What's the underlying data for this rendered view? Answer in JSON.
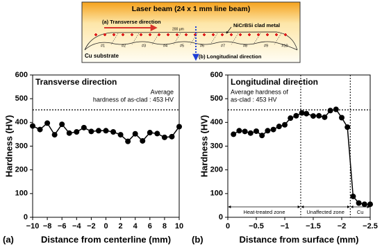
{
  "schematic": {
    "title": "Laser beam (24 x 1 mm line beam)",
    "transverse": "(a) Transverse direction",
    "scale": "200 μm",
    "clad": "NiCrBSi clad metal",
    "tracks": [
      "#1",
      "#2",
      "#3",
      "#4",
      "#5",
      "#6",
      "#7",
      "#8",
      "#9",
      "#10"
    ],
    "substrate": "Cu substrate",
    "longitudinal": "(b) Longitudinal direction"
  },
  "chart_data": [
    {
      "type": "line",
      "panel": "(a)",
      "title": "Transverse direction",
      "x_label": "Distance from centerline (mm)",
      "y_label": "Hardness (HV)",
      "x": [
        -10,
        -9,
        -8,
        -7,
        -6,
        -5,
        -4,
        -3,
        -2,
        -1,
        0,
        1,
        2,
        3,
        4,
        5,
        6,
        7,
        8,
        9,
        10
      ],
      "values": [
        385,
        370,
        397,
        348,
        392,
        355,
        360,
        378,
        362,
        365,
        365,
        360,
        348,
        320,
        352,
        322,
        357,
        353,
        337,
        340,
        382
      ],
      "color": "#000000",
      "xlim": [
        -10,
        10
      ],
      "xticks": [
        {
          "value": -10,
          "label": "−10"
        },
        {
          "value": -8,
          "label": "−8"
        },
        {
          "value": -6,
          "label": "−6"
        },
        {
          "value": -4,
          "label": "−4"
        },
        {
          "value": -2,
          "label": "−2"
        },
        0,
        2,
        4,
        6,
        8,
        10
      ],
      "ylim": [
        0,
        600
      ],
      "yticks": [
        0,
        100,
        200,
        300,
        400,
        500,
        600
      ],
      "hline": {
        "value": 453,
        "label": [
          "Average",
          "hardness of as-clad : 453 HV"
        ]
      }
    },
    {
      "type": "line",
      "panel": "(b)",
      "title": "Longitudinal direction",
      "x_label": "Distance from surface (mm)",
      "y_label": "Hardness (HV)",
      "x": [
        -0.1,
        -0.2,
        -0.3,
        -0.4,
        -0.5,
        -0.6,
        -0.7,
        -0.8,
        -0.9,
        -1.0,
        -1.1,
        -1.2,
        -1.3,
        -1.38,
        -1.5,
        -1.6,
        -1.7,
        -1.8,
        -1.9,
        -2.0,
        -2.1,
        -2.2,
        -2.3,
        -2.4,
        -2.5
      ],
      "values": [
        350,
        365,
        362,
        355,
        363,
        345,
        365,
        370,
        383,
        390,
        418,
        428,
        440,
        437,
        427,
        428,
        422,
        450,
        455,
        420,
        380,
        88,
        60,
        55,
        55
      ],
      "color": "#000000",
      "xlim": [
        0,
        -2.5
      ],
      "xticks": [
        0,
        {
          "value": -0.5,
          "label": "−0.5"
        },
        {
          "value": -1,
          "label": "−1"
        },
        {
          "value": -1.5,
          "label": "−1.5"
        },
        {
          "value": -2,
          "label": "−2"
        },
        {
          "value": -2.5,
          "label": "−2.5"
        }
      ],
      "ylim": [
        0,
        600
      ],
      "yticks": [
        0,
        100,
        200,
        300,
        400,
        500,
        600
      ],
      "hline": {
        "value": 453,
        "label": [
          "Average hardness of",
          "as-clad : 453 HV"
        ]
      },
      "zones": [
        {
          "label": "Heat-treated zone",
          "from": 0,
          "to": -1.28
        },
        {
          "label": "Unaffected zone",
          "from": -1.28,
          "to": -2.15
        },
        {
          "label": "Cu",
          "from": -2.15,
          "to": -2.5
        }
      ]
    }
  ]
}
